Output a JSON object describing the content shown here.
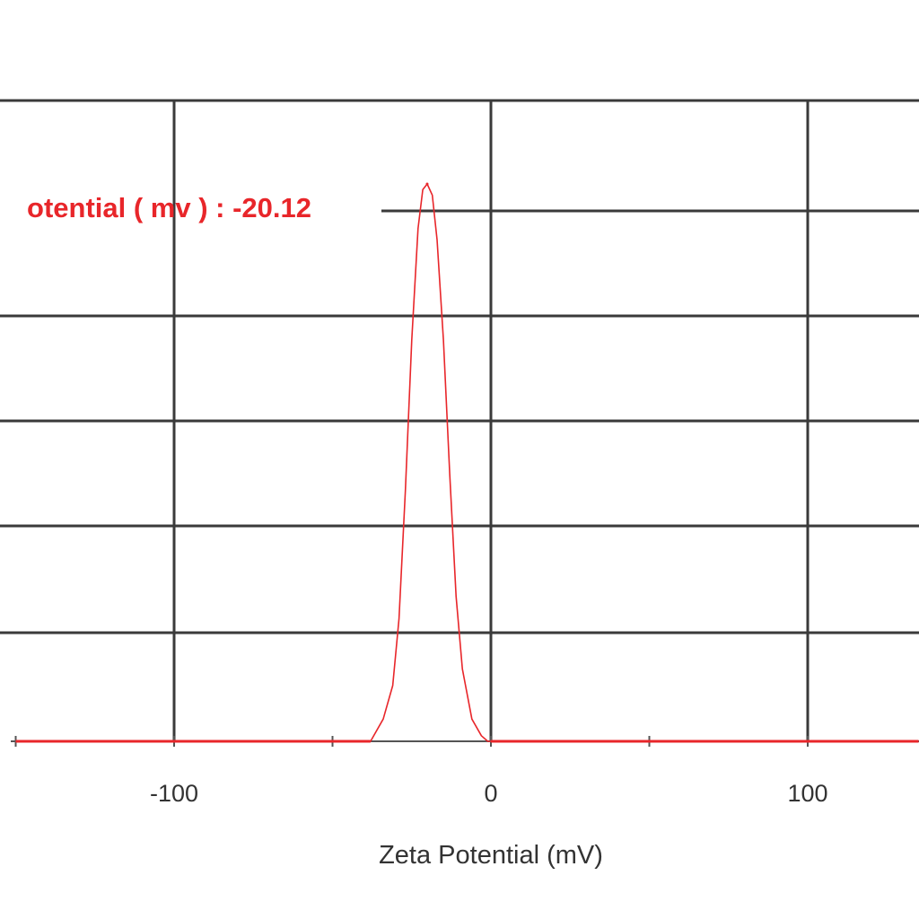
{
  "chart_data": {
    "type": "line",
    "xlabel": "Zeta Potential (mV)",
    "ylabel": "",
    "xlim": [
      -155,
      135
    ],
    "grid": true,
    "x_ticks": [
      {
        "value": -100,
        "label": "-100"
      },
      {
        "value": 0,
        "label": "0"
      },
      {
        "value": 100,
        "label": "100"
      }
    ],
    "annotation": {
      "text": "otential ( mv ) : -20.12",
      "x": -20.12
    },
    "series": [
      {
        "color": "#e8262a",
        "peak": -20.12,
        "x": [
          -150,
          -38,
          -34,
          -31,
          -29,
          -27,
          -25,
          -23,
          -21.5,
          -20.12,
          -18.5,
          -17,
          -15,
          -13,
          -11,
          -9,
          -6,
          -3,
          -1,
          0,
          135
        ],
        "y": [
          0,
          0,
          0.04,
          0.1,
          0.22,
          0.45,
          0.72,
          0.92,
          0.99,
          1.0,
          0.98,
          0.9,
          0.72,
          0.48,
          0.26,
          0.13,
          0.04,
          0.01,
          0,
          0,
          0
        ]
      }
    ]
  }
}
